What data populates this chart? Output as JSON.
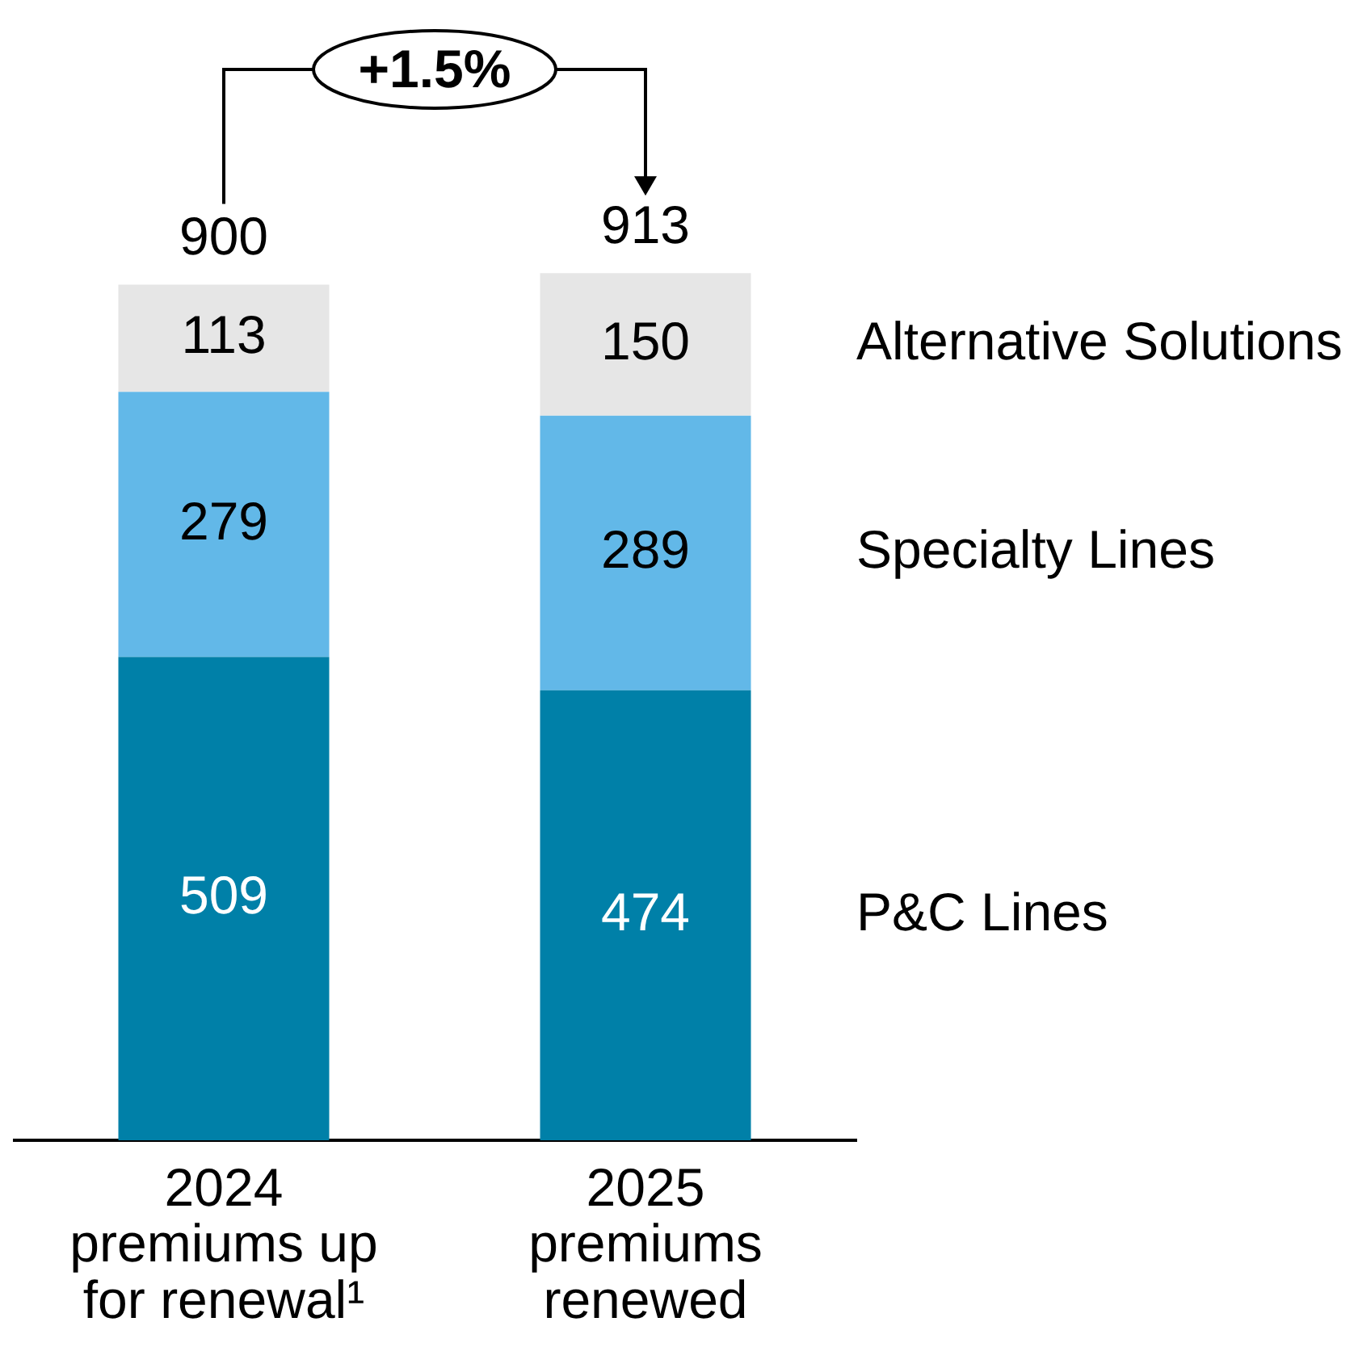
{
  "chart_data": {
    "type": "bar",
    "stacked": true,
    "categories": [
      "2024\npremiums up\nfor renewal¹",
      "2025\npremiums\nrenewed"
    ],
    "series": [
      {
        "name": "P&C Lines",
        "color": "#0080a8",
        "values": [
          509,
          474
        ]
      },
      {
        "name": "Specialty Lines",
        "color": "#62b8e8",
        "values": [
          279,
          289
        ]
      },
      {
        "name": "Alternative Solutions",
        "color": "#e6e6e6",
        "values": [
          113,
          150
        ]
      }
    ],
    "data_labels": true,
    "totals": [
      "900",
      "913"
    ],
    "annotations": [
      "+1.5%"
    ],
    "tick_labels": "x",
    "grid": false,
    "legend": false
  }
}
